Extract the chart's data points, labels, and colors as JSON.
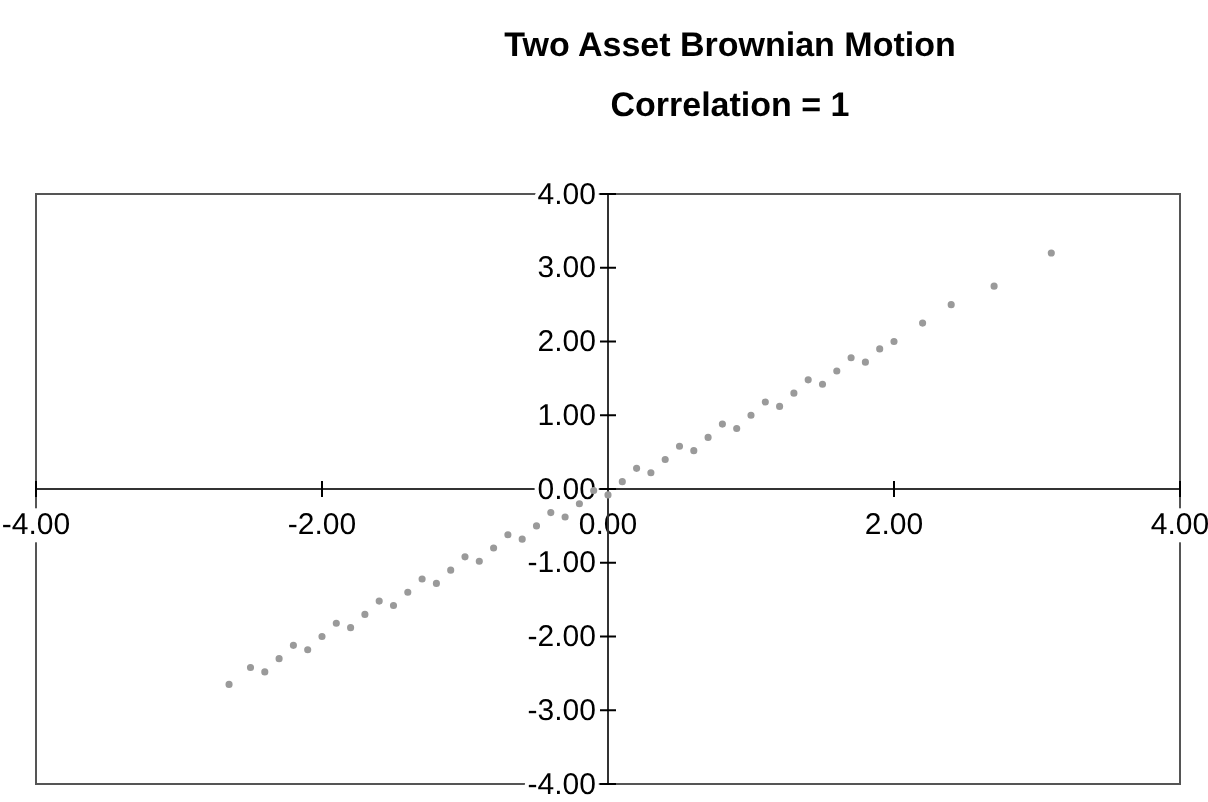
{
  "chart_data": {
    "type": "scatter",
    "title": "Two Asset Brownian Motion",
    "subtitle": "Correlation = 1",
    "x": [
      -2.65,
      -2.5,
      -2.4,
      -2.3,
      -2.2,
      -2.1,
      -2.0,
      -1.9,
      -1.8,
      -1.7,
      -1.6,
      -1.5,
      -1.4,
      -1.3,
      -1.2,
      -1.1,
      -1.0,
      -0.9,
      -0.8,
      -0.7,
      -0.6,
      -0.5,
      -0.4,
      -0.3,
      -0.2,
      -0.1,
      0,
      0.1,
      0.2,
      0.3,
      0.4,
      0.5,
      0.6,
      0.7,
      0.8,
      0.9,
      1.0,
      1.1,
      1.2,
      1.3,
      1.4,
      1.5,
      1.6,
      1.7,
      1.8,
      1.9,
      2.0,
      2.2,
      2.4,
      2.7,
      3.1
    ],
    "series": [
      {
        "color": "#9a9a9a",
        "values": [
          -2.65,
          -2.42,
          -2.48,
          -2.3,
          -2.12,
          -2.18,
          -2.0,
          -1.82,
          -1.88,
          -1.7,
          -1.52,
          -1.58,
          -1.4,
          -1.22,
          -1.28,
          -1.1,
          -0.92,
          -0.98,
          -0.8,
          -0.62,
          -0.68,
          -0.5,
          -0.32,
          -0.38,
          -0.2,
          -0.02,
          -0.08,
          0.1,
          0.28,
          0.22,
          0.4,
          0.58,
          0.52,
          0.7,
          0.88,
          0.82,
          1.0,
          1.18,
          1.12,
          1.3,
          1.48,
          1.42,
          1.6,
          1.78,
          1.72,
          1.9,
          2.0,
          2.25,
          2.5,
          2.75,
          3.2
        ]
      }
    ],
    "xlim": [
      -4,
      4
    ],
    "ylim": [
      -4,
      4
    ],
    "xticks": [
      {
        "value": -4,
        "label": "-4.00"
      },
      {
        "value": -2,
        "label": "-2.00"
      },
      {
        "value": 0,
        "label": "0.00"
      },
      {
        "value": 2,
        "label": "2.00"
      },
      {
        "value": 4,
        "label": "4.00"
      }
    ],
    "yticks": [
      {
        "value": -4,
        "label": "-4.00"
      },
      {
        "value": -3,
        "label": "-3.00"
      },
      {
        "value": -2,
        "label": "-2.00"
      },
      {
        "value": -1,
        "label": "-1.00"
      },
      {
        "value": 0,
        "label": "0.00"
      },
      {
        "value": 1,
        "label": "1.00"
      },
      {
        "value": 2,
        "label": "2.00"
      },
      {
        "value": 3,
        "label": "3.00"
      },
      {
        "value": 4,
        "label": "4.00"
      }
    ],
    "grid": false,
    "marker": "circle"
  }
}
